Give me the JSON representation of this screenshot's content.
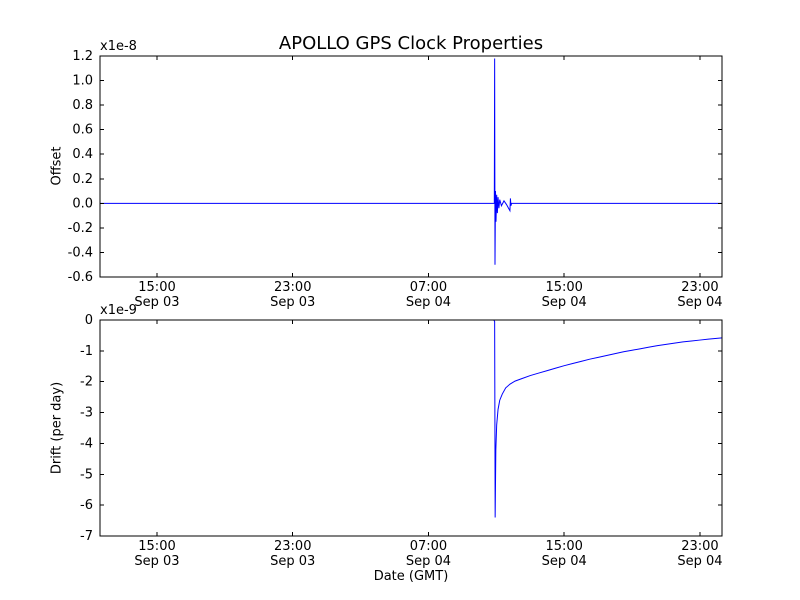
{
  "figure": {
    "background": "#ffffff",
    "line_color": "#0000ff",
    "axis_color": "#000000"
  },
  "chart_data": [
    {
      "type": "line",
      "title": "APOLLO GPS Clock Properties",
      "ylabel": "Offset",
      "y_scale_label": "x1e-8",
      "xlabel": "",
      "legend": "none",
      "grid": false,
      "x_hours_origin": "Sep 03 00:00 GMT",
      "xlim": [
        11.64,
        48.3
      ],
      "ylim": [
        -0.6,
        1.2
      ],
      "xticks": [
        {
          "x": 15,
          "label": [
            "15:00",
            "Sep 03"
          ]
        },
        {
          "x": 23,
          "label": [
            "23:00",
            "Sep 03"
          ]
        },
        {
          "x": 31,
          "label": [
            "07:00",
            "Sep 04"
          ]
        },
        {
          "x": 39,
          "label": [
            "15:00",
            "Sep 04"
          ]
        },
        {
          "x": 47,
          "label": [
            "23:00",
            "Sep 04"
          ]
        }
      ],
      "yticks": [
        {
          "v": 1.2,
          "label": "1.2"
        },
        {
          "v": 1.0,
          "label": "1.0"
        },
        {
          "v": 0.8,
          "label": "0.8"
        },
        {
          "v": 0.6,
          "label": "0.6"
        },
        {
          "v": 0.4,
          "label": "0.4"
        },
        {
          "v": 0.2,
          "label": "0.2"
        },
        {
          "v": 0.0,
          "label": "0.0"
        },
        {
          "v": -0.2,
          "label": "-0.2"
        },
        {
          "v": -0.4,
          "label": "-0.4"
        },
        {
          "v": -0.6,
          "label": "-0.6"
        }
      ],
      "series": [
        {
          "name": "clock-offset",
          "units": "1e-8 s",
          "points": [
            [
              11.64,
              0.0
            ],
            [
              20.0,
              0.0
            ],
            [
              30.0,
              0.0
            ],
            [
              34.8,
              0.0
            ],
            [
              34.88,
              0.0
            ],
            [
              34.9,
              1.18
            ],
            [
              34.92,
              -0.5
            ],
            [
              34.95,
              0.1
            ],
            [
              34.98,
              -0.15
            ],
            [
              35.02,
              0.07
            ],
            [
              35.06,
              -0.08
            ],
            [
              35.1,
              0.05
            ],
            [
              35.15,
              -0.04
            ],
            [
              35.2,
              0.03
            ],
            [
              35.3,
              -0.02
            ],
            [
              35.45,
              0.02
            ],
            [
              35.6,
              -0.01
            ],
            [
              35.8,
              -0.06
            ],
            [
              35.83,
              0.04
            ],
            [
              35.86,
              -0.02
            ],
            [
              35.9,
              0.0
            ],
            [
              40.0,
              0.0
            ],
            [
              44.0,
              0.0
            ],
            [
              48.3,
              0.0
            ]
          ]
        }
      ]
    },
    {
      "type": "line",
      "title": "",
      "ylabel": "Drift (per day)",
      "y_scale_label": "x1e-9",
      "xlabel": "Date (GMT)",
      "legend": "none",
      "grid": false,
      "x_hours_origin": "Sep 03 00:00 GMT",
      "xlim": [
        11.64,
        48.3
      ],
      "ylim": [
        -7,
        0
      ],
      "xticks": [
        {
          "x": 15,
          "label": [
            "15:00",
            "Sep 03"
          ]
        },
        {
          "x": 23,
          "label": [
            "23:00",
            "Sep 03"
          ]
        },
        {
          "x": 31,
          "label": [
            "07:00",
            "Sep 04"
          ]
        },
        {
          "x": 39,
          "label": [
            "15:00",
            "Sep 04"
          ]
        },
        {
          "x": 47,
          "label": [
            "23:00",
            "Sep 04"
          ]
        }
      ],
      "yticks": [
        {
          "v": 0,
          "label": "0"
        },
        {
          "v": -1,
          "label": "-1"
        },
        {
          "v": -2,
          "label": "-2"
        },
        {
          "v": -3,
          "label": "-3"
        },
        {
          "v": -4,
          "label": "-4"
        },
        {
          "v": -5,
          "label": "-5"
        },
        {
          "v": -6,
          "label": "-6"
        },
        {
          "v": -7,
          "label": "-7"
        }
      ],
      "series": [
        {
          "name": "clock-drift",
          "units": "1e-9 per day",
          "points": [
            [
              11.64,
              0.0
            ],
            [
              20.0,
              0.0
            ],
            [
              30.0,
              0.0
            ],
            [
              34.85,
              0.0
            ],
            [
              34.9,
              -0.05
            ],
            [
              34.93,
              -6.4
            ],
            [
              34.97,
              -4.2
            ],
            [
              35.02,
              -3.4
            ],
            [
              35.1,
              -2.9
            ],
            [
              35.2,
              -2.6
            ],
            [
              35.35,
              -2.4
            ],
            [
              35.55,
              -2.2
            ],
            [
              35.8,
              -2.08
            ],
            [
              36.1,
              -1.98
            ],
            [
              36.5,
              -1.9
            ],
            [
              37.0,
              -1.8
            ],
            [
              37.5,
              -1.72
            ],
            [
              38.0,
              -1.64
            ],
            [
              38.5,
              -1.56
            ],
            [
              39.0,
              -1.48
            ],
            [
              39.5,
              -1.41
            ],
            [
              40.0,
              -1.34
            ],
            [
              40.5,
              -1.27
            ],
            [
              41.0,
              -1.21
            ],
            [
              41.5,
              -1.15
            ],
            [
              42.0,
              -1.09
            ],
            [
              42.5,
              -1.03
            ],
            [
              43.0,
              -0.98
            ],
            [
              43.5,
              -0.93
            ],
            [
              44.0,
              -0.88
            ],
            [
              44.5,
              -0.83
            ],
            [
              45.0,
              -0.79
            ],
            [
              45.5,
              -0.75
            ],
            [
              46.0,
              -0.71
            ],
            [
              46.5,
              -0.68
            ],
            [
              47.0,
              -0.65
            ],
            [
              47.5,
              -0.62
            ],
            [
              48.3,
              -0.58
            ]
          ]
        }
      ]
    }
  ]
}
